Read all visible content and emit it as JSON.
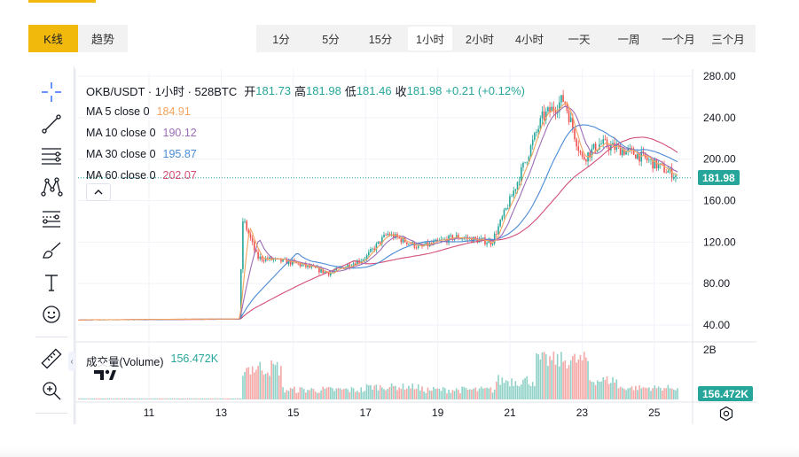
{
  "mode_tabs": [
    {
      "label": "K线",
      "active": true
    },
    {
      "label": "趋势",
      "active": false
    }
  ],
  "intervals": [
    {
      "label": "1分",
      "active": false
    },
    {
      "label": "5分",
      "active": false
    },
    {
      "label": "15分",
      "active": false
    },
    {
      "label": "1小时",
      "active": true
    },
    {
      "label": "2小时",
      "active": false
    },
    {
      "label": "4小时",
      "active": false
    },
    {
      "label": "一天",
      "active": false
    },
    {
      "label": "一周",
      "active": false
    },
    {
      "label": "一个月",
      "active": false
    },
    {
      "label": "三个月",
      "active": false
    }
  ],
  "legend": {
    "title": "OKB/USDT · 1小时 · 528BTC",
    "open_label": "开",
    "open": "181.73",
    "high_label": "高",
    "high": "181.98",
    "low_label": "低",
    "low": "181.46",
    "close_label": "收",
    "close": "181.98",
    "change": "+0.21 (+0.12%)",
    "ma": [
      {
        "label": "MA 5 close 0",
        "value": "184.91",
        "color": "#f4a460"
      },
      {
        "label": "MA 10 close 0",
        "value": "190.12",
        "color": "#9c6bb6"
      },
      {
        "label": "MA 30 close 0",
        "value": "195.87",
        "color": "#4b8ad6"
      },
      {
        "label": "MA 60 close 0",
        "value": "202.07",
        "color": "#d24f76"
      }
    ]
  },
  "volume": {
    "label": "成交量(Volume)",
    "value": "156.472K",
    "axis_top_label": "2B"
  },
  "price_axis": [
    "280.00",
    "240.00",
    "200.00",
    "160.00",
    "120.00",
    "80.00",
    "40.00"
  ],
  "time_axis": [
    "11",
    "13",
    "15",
    "17",
    "19",
    "21",
    "23",
    "25"
  ],
  "current_price": "181.98",
  "current_volume": "156.472K",
  "colors": {
    "accent": "#f0b90b",
    "up": "#26a69a",
    "down": "#ef5350",
    "ma5": "#f4a460",
    "ma10": "#9c6bb6",
    "ma30": "#4b8ad6",
    "ma60": "#d24f76"
  },
  "tools": [
    "crosshair-icon",
    "trendline-icon",
    "parallel-lines-icon",
    "pattern-icon",
    "fib-icon",
    "brush-icon",
    "text-icon",
    "emoji-icon",
    "ruler-icon",
    "zoom-in-icon"
  ],
  "chart_data": {
    "type": "candlestick",
    "price_unit": "USDT",
    "ylim": [
      20,
      290
    ],
    "x_day_ticks": [
      11,
      13,
      15,
      17,
      19,
      21,
      23,
      25
    ],
    "key_points": [
      {
        "day": 9.0,
        "price": 45
      },
      {
        "day": 13.5,
        "price": 46
      },
      {
        "day": 13.6,
        "price": 143
      },
      {
        "day": 14.0,
        "price": 105
      },
      {
        "day": 15.0,
        "price": 100
      },
      {
        "day": 16.0,
        "price": 90
      },
      {
        "day": 17.0,
        "price": 105
      },
      {
        "day": 17.6,
        "price": 128
      },
      {
        "day": 18.5,
        "price": 115
      },
      {
        "day": 19.5,
        "price": 125
      },
      {
        "day": 20.5,
        "price": 120
      },
      {
        "day": 21.0,
        "price": 160
      },
      {
        "day": 21.9,
        "price": 240
      },
      {
        "day": 22.5,
        "price": 258
      },
      {
        "day": 23.0,
        "price": 200
      },
      {
        "day": 23.5,
        "price": 215
      },
      {
        "day": 24.5,
        "price": 205
      },
      {
        "day": 25.7,
        "price": 182
      }
    ]
  }
}
